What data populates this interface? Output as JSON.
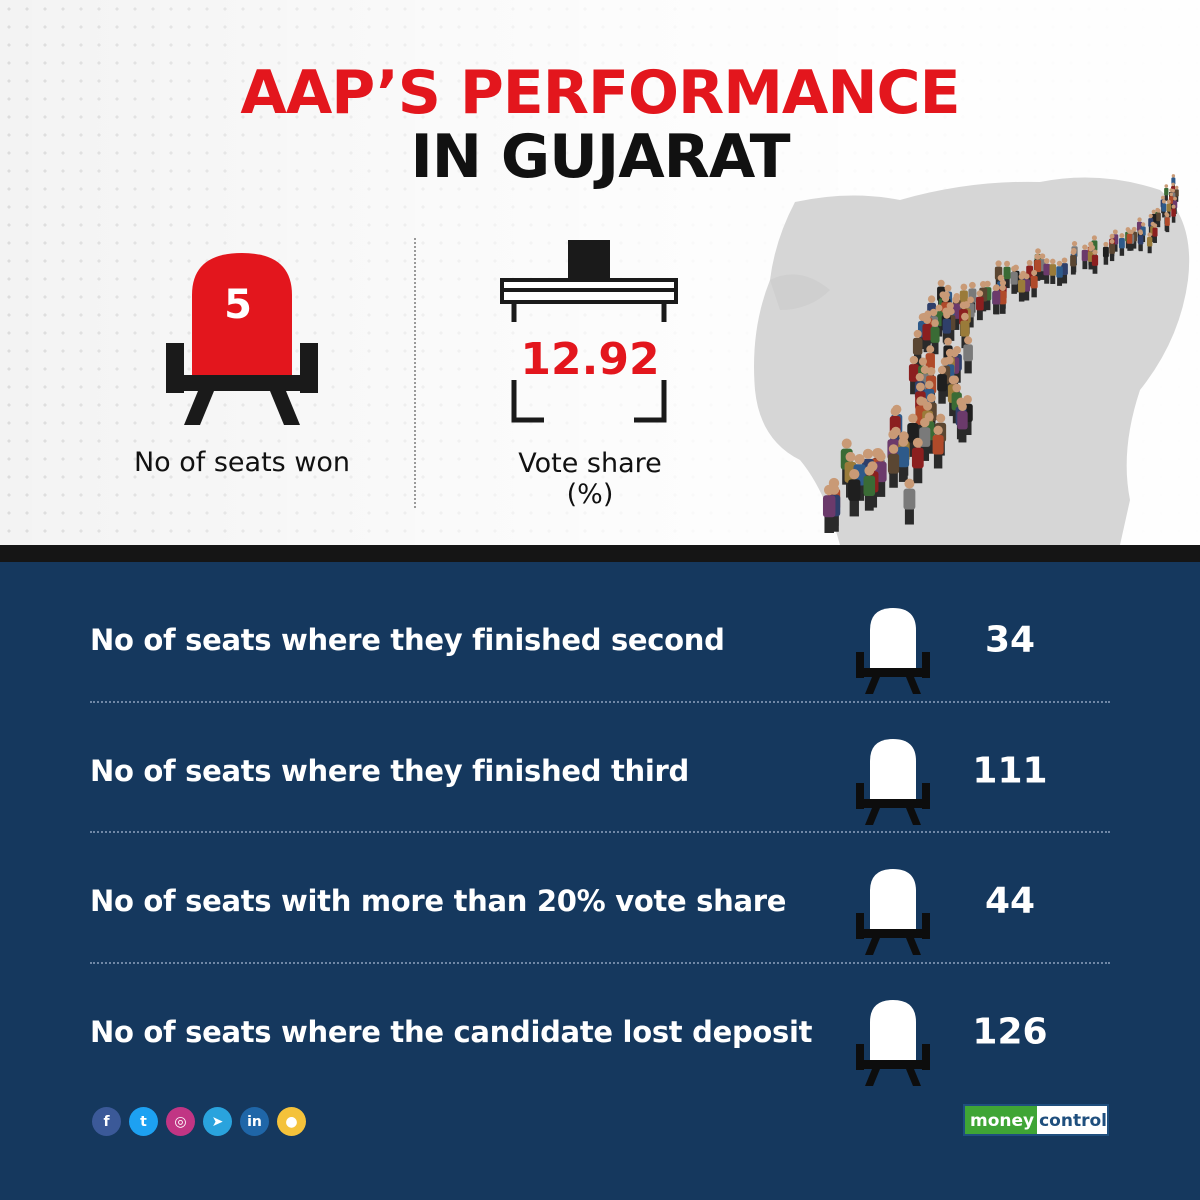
{
  "header": {
    "title_line_1": "AAP’S PERFORMANCE",
    "title_line_2": "IN GUJARAT"
  },
  "headline_stats": {
    "seats_won": {
      "value": "5",
      "label": "No of seats won"
    },
    "vote_share": {
      "value": "12.92",
      "label_line_1": "Vote share",
      "label_line_2": "(%)"
    }
  },
  "stats": [
    {
      "label": "No of seats where they finished second",
      "value": "34"
    },
    {
      "label": "No of seats where they finished third",
      "value": "111"
    },
    {
      "label": "No of seats with more than 20% vote share",
      "value": "44"
    },
    {
      "label": "No of seats where the candidate lost deposit",
      "value": "126"
    }
  ],
  "social_icons": [
    {
      "name": "facebook-icon",
      "glyph": "f",
      "color": "#3b5998"
    },
    {
      "name": "twitter-icon",
      "glyph": "t",
      "color": "#1da1f2"
    },
    {
      "name": "instagram-icon",
      "glyph": "◎",
      "color": "#c13584"
    },
    {
      "name": "telegram-icon",
      "glyph": "➤",
      "color": "#2aa3dd"
    },
    {
      "name": "linkedin-icon",
      "glyph": "in",
      "color": "#1f66a8"
    },
    {
      "name": "koo-icon",
      "glyph": "●",
      "color": "#f4c23b"
    }
  ],
  "brand": {
    "part_1": "money",
    "part_2": "control"
  },
  "colors": {
    "accent_red": "#e3161d",
    "navy": "#15385e",
    "brand_green": "#3fa535",
    "brand_blue": "#1f4f7e"
  }
}
